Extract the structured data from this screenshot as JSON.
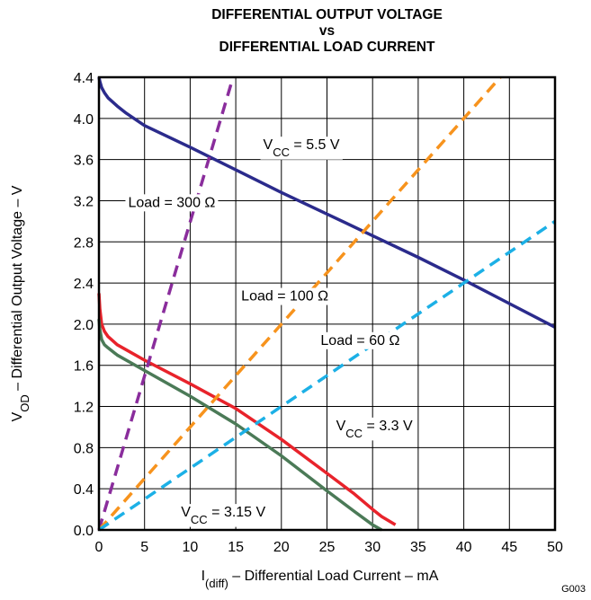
{
  "chart_data": {
    "type": "line",
    "title_lines": [
      "DIFFERENTIAL OUTPUT VOLTAGE",
      "vs",
      "DIFFERENTIAL LOAD CURRENT"
    ],
    "xlabel": {
      "main": "I",
      "sub": "(diff)",
      "rest": " – Differential Load Current – mA"
    },
    "ylabel": {
      "main": "V",
      "sub": "OD",
      "rest": " – Differential Output Voltage – V"
    },
    "xlim": [
      0,
      50
    ],
    "ylim": [
      0,
      4.4
    ],
    "xticks": [
      0,
      5,
      10,
      15,
      20,
      25,
      30,
      35,
      40,
      45,
      50
    ],
    "yticks": [
      0.0,
      0.4,
      0.8,
      1.2,
      1.6,
      2.0,
      2.4,
      2.8,
      3.2,
      3.6,
      4.0,
      4.4
    ],
    "ytick_labels": [
      "0.0",
      "0.4",
      "0.8",
      "1.2",
      "1.6",
      "2.0",
      "2.4",
      "2.8",
      "3.2",
      "3.6",
      "4.0",
      "4.4"
    ],
    "grid": true,
    "series": [
      {
        "name": "VCC = 5.5 V",
        "color": "#2b2b8c",
        "dash": "solid",
        "x": [
          0,
          0.1,
          0.3,
          0.6,
          1,
          2,
          3,
          5,
          10,
          15,
          20,
          25,
          30,
          35,
          40,
          45,
          50
        ],
        "y": [
          4.4,
          4.36,
          4.3,
          4.25,
          4.2,
          4.12,
          4.05,
          3.93,
          3.72,
          3.5,
          3.28,
          3.07,
          2.86,
          2.65,
          2.43,
          2.2,
          1.97
        ]
      },
      {
        "name": "VCC = 3.3 V",
        "color": "#e8232b",
        "dash": "solid",
        "x": [
          0,
          0.1,
          0.3,
          0.6,
          1,
          2,
          5,
          10,
          15,
          20,
          25,
          28,
          30,
          31,
          32.5
        ],
        "y": [
          2.3,
          2.15,
          2.0,
          1.93,
          1.88,
          1.8,
          1.65,
          1.42,
          1.18,
          0.88,
          0.55,
          0.35,
          0.2,
          0.13,
          0.05
        ]
      },
      {
        "name": "VCC = 3.15 V",
        "color": "#4b7a57",
        "dash": "solid",
        "x": [
          0,
          0.1,
          0.3,
          0.6,
          1,
          2,
          5,
          10,
          15,
          20,
          25,
          28,
          30,
          31
        ],
        "y": [
          2.05,
          1.95,
          1.85,
          1.8,
          1.77,
          1.7,
          1.55,
          1.3,
          1.03,
          0.72,
          0.38,
          0.18,
          0.05,
          0.0
        ]
      },
      {
        "name": "Load = 300 Ω",
        "color": "#8a2d9c",
        "dash": "dashed",
        "x": [
          0,
          14.7
        ],
        "y": [
          0,
          4.4
        ]
      },
      {
        "name": "Load = 100 Ω",
        "color": "#f7931d",
        "dash": "dashed",
        "x": [
          0,
          44
        ],
        "y": [
          0,
          4.4
        ]
      },
      {
        "name": "Load = 60 Ω",
        "color": "#1cb0e6",
        "dash": "dashed",
        "x": [
          0,
          50
        ],
        "y": [
          0,
          3.0
        ]
      }
    ],
    "annotations": [
      {
        "main": "V",
        "sub": "CC",
        "rest": " = 5.5 V",
        "x": 18,
        "y": 3.7
      },
      {
        "main": "Load = 300 Ω",
        "sub": "",
        "rest": "",
        "x": 3.2,
        "y": 3.14
      },
      {
        "main": "Load = 100 Ω",
        "sub": "",
        "rest": "",
        "x": 15.6,
        "y": 2.23
      },
      {
        "main": "Load = 60 Ω",
        "sub": "",
        "rest": "",
        "x": 24.3,
        "y": 1.8
      },
      {
        "main": "V",
        "sub": "CC",
        "rest": " = 3.3 V",
        "x": 26,
        "y": 0.97
      },
      {
        "main": "V",
        "sub": "CC",
        "rest": " = 3.15 V",
        "x": 9,
        "y": 0.13
      }
    ],
    "footer": "G003"
  }
}
